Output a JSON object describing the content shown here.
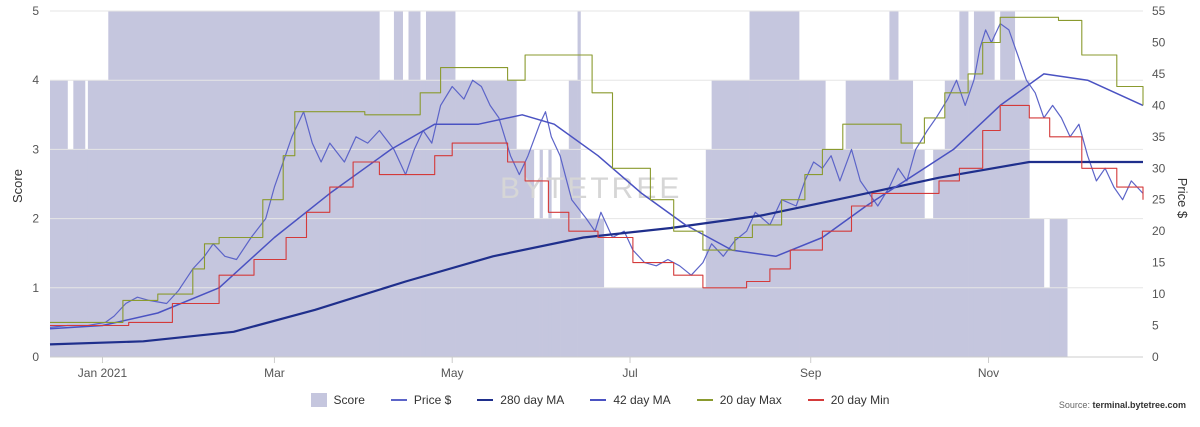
{
  "chart_data": {
    "type": "line",
    "y_left_label": "Score",
    "y_right_label": "Price $",
    "y_left_range": [
      0,
      5
    ],
    "y_left_ticks": [
      "0",
      "1",
      "2",
      "3",
      "4",
      "5"
    ],
    "y_right_range": [
      0,
      55
    ],
    "y_right_ticks": [
      "0",
      "5",
      "10",
      "15",
      "20",
      "25",
      "30",
      "35",
      "40",
      "45",
      "50",
      "55"
    ],
    "x_range": [
      "2020-12-14",
      "2021-12-24"
    ],
    "x_ticks": [
      {
        "date": "2021-01-01",
        "label": "Jan 2021"
      },
      {
        "date": "2021-03-01",
        "label": "Mar"
      },
      {
        "date": "2021-05-01",
        "label": "May"
      },
      {
        "date": "2021-07-01",
        "label": "Jul"
      },
      {
        "date": "2021-09-01",
        "label": "Sep"
      },
      {
        "date": "2021-11-01",
        "label": "Nov"
      }
    ],
    "grid": "horizontal",
    "legend_position": "bottom-center",
    "watermark": "BYTETREE",
    "source_prefix": "Source: ",
    "source_site": "terminal.bytetree.com",
    "score_steps": [
      [
        "2020-12-14",
        4
      ],
      [
        "2020-12-20",
        3
      ],
      [
        "2020-12-22",
        4
      ],
      [
        "2020-12-26",
        3
      ],
      [
        "2020-12-27",
        4
      ],
      [
        "2021-01-03",
        5
      ],
      [
        "2021-04-06",
        4
      ],
      [
        "2021-04-11",
        5
      ],
      [
        "2021-04-14",
        4
      ],
      [
        "2021-04-16",
        5
      ],
      [
        "2021-04-20",
        4
      ],
      [
        "2021-04-22",
        5
      ],
      [
        "2021-05-02",
        4
      ],
      [
        "2021-05-23",
        3
      ],
      [
        "2021-05-29",
        2
      ],
      [
        "2021-05-31",
        3
      ],
      [
        "2021-06-01",
        2
      ],
      [
        "2021-06-03",
        3
      ],
      [
        "2021-06-04",
        2
      ],
      [
        "2021-06-07",
        3
      ],
      [
        "2021-06-10",
        4
      ],
      [
        "2021-06-13",
        5
      ],
      [
        "2021-06-14",
        2
      ],
      [
        "2021-06-22",
        1
      ],
      [
        "2021-07-27",
        3
      ],
      [
        "2021-07-29",
        4
      ],
      [
        "2021-08-11",
        5
      ],
      [
        "2021-08-28",
        4
      ],
      [
        "2021-09-06",
        3
      ],
      [
        "2021-09-13",
        4
      ],
      [
        "2021-09-28",
        5
      ],
      [
        "2021-10-01",
        4
      ],
      [
        "2021-10-06",
        3
      ],
      [
        "2021-10-10",
        2
      ],
      [
        "2021-10-13",
        3
      ],
      [
        "2021-10-17",
        4
      ],
      [
        "2021-10-22",
        5
      ],
      [
        "2021-10-25",
        4
      ],
      [
        "2021-10-27",
        5
      ],
      [
        "2021-11-03",
        4
      ],
      [
        "2021-11-05",
        5
      ],
      [
        "2021-11-10",
        4
      ],
      [
        "2021-11-15",
        2
      ],
      [
        "2021-11-20",
        1
      ],
      [
        "2021-11-22",
        2
      ],
      [
        "2021-11-28",
        0
      ],
      [
        "2021-12-24",
        0
      ]
    ],
    "series": [
      {
        "name": "Price $",
        "color": "#5c64c8",
        "width": 1.2,
        "points": [
          [
            "2020-12-14",
            4.7
          ],
          [
            "2020-12-20",
            5.0
          ],
          [
            "2020-12-27",
            5.0
          ],
          [
            "2021-01-02",
            5.5
          ],
          [
            "2021-01-05",
            6.5
          ],
          [
            "2021-01-09",
            8.5
          ],
          [
            "2021-01-13",
            9.5
          ],
          [
            "2021-01-17",
            9.0
          ],
          [
            "2021-01-23",
            8.5
          ],
          [
            "2021-01-27",
            10.5
          ],
          [
            "2021-02-01",
            14.0
          ],
          [
            "2021-02-05",
            16.0
          ],
          [
            "2021-02-08",
            18.0
          ],
          [
            "2021-02-12",
            16.0
          ],
          [
            "2021-02-16",
            15.5
          ],
          [
            "2021-02-21",
            19.0
          ],
          [
            "2021-02-26",
            22.0
          ],
          [
            "2021-03-01",
            27.0
          ],
          [
            "2021-03-04",
            31.0
          ],
          [
            "2021-03-07",
            35.0
          ],
          [
            "2021-03-11",
            39.0
          ],
          [
            "2021-03-14",
            34.0
          ],
          [
            "2021-03-17",
            31.0
          ],
          [
            "2021-03-20",
            34.0
          ],
          [
            "2021-03-25",
            31.0
          ],
          [
            "2021-03-29",
            35.0
          ],
          [
            "2021-04-02",
            34.0
          ],
          [
            "2021-04-06",
            36.0
          ],
          [
            "2021-04-11",
            33.0
          ],
          [
            "2021-04-15",
            29.0
          ],
          [
            "2021-04-18",
            33.0
          ],
          [
            "2021-04-21",
            36.0
          ],
          [
            "2021-04-24",
            34.0
          ],
          [
            "2021-04-27",
            40.0
          ],
          [
            "2021-05-01",
            43.0
          ],
          [
            "2021-05-05",
            41.0
          ],
          [
            "2021-05-08",
            44.0
          ],
          [
            "2021-05-11",
            43.0
          ],
          [
            "2021-05-14",
            40.0
          ],
          [
            "2021-05-17",
            38.0
          ],
          [
            "2021-05-21",
            32.0
          ],
          [
            "2021-05-24",
            29.0
          ],
          [
            "2021-05-27",
            32.0
          ],
          [
            "2021-05-31",
            37.0
          ],
          [
            "2021-06-02",
            39.0
          ],
          [
            "2021-06-04",
            35.0
          ],
          [
            "2021-06-07",
            32.0
          ],
          [
            "2021-06-11",
            25.0
          ],
          [
            "2021-06-16",
            22.0
          ],
          [
            "2021-06-19",
            20.0
          ],
          [
            "2021-06-21",
            23.0
          ],
          [
            "2021-06-25",
            19.0
          ],
          [
            "2021-06-29",
            20.0
          ],
          [
            "2021-07-02",
            17.0
          ],
          [
            "2021-07-06",
            15.0
          ],
          [
            "2021-07-10",
            14.5
          ],
          [
            "2021-07-14",
            15.5
          ],
          [
            "2021-07-18",
            14.5
          ],
          [
            "2021-07-22",
            13.0
          ],
          [
            "2021-07-26",
            15.0
          ],
          [
            "2021-07-29",
            18.0
          ],
          [
            "2021-08-02",
            16.0
          ],
          [
            "2021-08-06",
            18.5
          ],
          [
            "2021-08-10",
            20.0
          ],
          [
            "2021-08-13",
            23.0
          ],
          [
            "2021-08-18",
            21.0
          ],
          [
            "2021-08-22",
            25.0
          ],
          [
            "2021-08-27",
            24.0
          ],
          [
            "2021-08-30",
            28.0
          ],
          [
            "2021-09-02",
            31.0
          ],
          [
            "2021-09-05",
            30.0
          ],
          [
            "2021-09-08",
            32.0
          ],
          [
            "2021-09-11",
            28.0
          ],
          [
            "2021-09-15",
            33.0
          ],
          [
            "2021-09-18",
            28.0
          ],
          [
            "2021-09-21",
            26.0
          ],
          [
            "2021-09-24",
            24.0
          ],
          [
            "2021-09-28",
            27.0
          ],
          [
            "2021-10-01",
            30.0
          ],
          [
            "2021-10-04",
            28.0
          ],
          [
            "2021-10-07",
            33.0
          ],
          [
            "2021-10-11",
            36.0
          ],
          [
            "2021-10-14",
            38.0
          ],
          [
            "2021-10-18",
            41.0
          ],
          [
            "2021-10-21",
            44.0
          ],
          [
            "2021-10-24",
            40.0
          ],
          [
            "2021-10-27",
            44.0
          ],
          [
            "2021-10-29",
            49.0
          ],
          [
            "2021-10-31",
            52.0
          ],
          [
            "2021-11-02",
            50.0
          ],
          [
            "2021-11-05",
            53.0
          ],
          [
            "2021-11-08",
            52.0
          ],
          [
            "2021-11-11",
            48.0
          ],
          [
            "2021-11-14",
            44.0
          ],
          [
            "2021-11-17",
            42.0
          ],
          [
            "2021-11-20",
            38.0
          ],
          [
            "2021-11-23",
            40.0
          ],
          [
            "2021-11-26",
            38.0
          ],
          [
            "2021-11-29",
            35.0
          ],
          [
            "2021-12-02",
            37.0
          ],
          [
            "2021-12-05",
            32.0
          ],
          [
            "2021-12-08",
            28.0
          ],
          [
            "2021-12-11",
            30.0
          ],
          [
            "2021-12-14",
            27.0
          ],
          [
            "2021-12-17",
            25.0
          ],
          [
            "2021-12-20",
            28.0
          ],
          [
            "2021-12-24",
            26.0
          ]
        ]
      },
      {
        "name": "280 day MA",
        "color": "#1f2f8c",
        "width": 2.2,
        "points": [
          [
            "2020-12-14",
            2.0
          ],
          [
            "2021-01-15",
            2.5
          ],
          [
            "2021-02-15",
            4.0
          ],
          [
            "2021-03-15",
            7.5
          ],
          [
            "2021-04-15",
            12.0
          ],
          [
            "2021-05-15",
            16.0
          ],
          [
            "2021-06-15",
            19.0
          ],
          [
            "2021-07-15",
            20.5
          ],
          [
            "2021-08-15",
            22.5
          ],
          [
            "2021-09-15",
            25.5
          ],
          [
            "2021-10-15",
            28.5
          ],
          [
            "2021-11-15",
            31.0
          ],
          [
            "2021-12-24",
            31.0
          ]
        ]
      },
      {
        "name": "42 day MA",
        "color": "#4a52c2",
        "width": 1.5,
        "points": [
          [
            "2020-12-14",
            4.5
          ],
          [
            "2021-01-01",
            5.0
          ],
          [
            "2021-01-20",
            7.0
          ],
          [
            "2021-02-10",
            11.0
          ],
          [
            "2021-03-01",
            19.0
          ],
          [
            "2021-03-20",
            26.0
          ],
          [
            "2021-04-10",
            33.0
          ],
          [
            "2021-04-25",
            37.0
          ],
          [
            "2021-05-10",
            37.0
          ],
          [
            "2021-05-25",
            38.5
          ],
          [
            "2021-06-05",
            37.0
          ],
          [
            "2021-06-20",
            32.0
          ],
          [
            "2021-07-05",
            26.0
          ],
          [
            "2021-07-20",
            21.0
          ],
          [
            "2021-08-05",
            17.0
          ],
          [
            "2021-08-20",
            16.0
          ],
          [
            "2021-09-05",
            19.0
          ],
          [
            "2021-09-20",
            24.0
          ],
          [
            "2021-10-05",
            28.5
          ],
          [
            "2021-10-20",
            33.0
          ],
          [
            "2021-11-05",
            40.0
          ],
          [
            "2021-11-20",
            45.0
          ],
          [
            "2021-12-05",
            44.0
          ],
          [
            "2021-12-24",
            40.0
          ]
        ]
      },
      {
        "name": "20 day Max",
        "color": "#8a9a2e",
        "width": 1.1,
        "step": true,
        "points": [
          [
            "2020-12-14",
            5.5
          ],
          [
            "2021-01-08",
            9.0
          ],
          [
            "2021-01-20",
            10.0
          ],
          [
            "2021-02-01",
            14.0
          ],
          [
            "2021-02-05",
            18.0
          ],
          [
            "2021-02-10",
            19.0
          ],
          [
            "2021-02-25",
            25.0
          ],
          [
            "2021-03-04",
            32.0
          ],
          [
            "2021-03-08",
            39.0
          ],
          [
            "2021-04-01",
            38.5
          ],
          [
            "2021-04-20",
            42.0
          ],
          [
            "2021-04-27",
            46.0
          ],
          [
            "2021-05-20",
            44.0
          ],
          [
            "2021-05-26",
            48.0
          ],
          [
            "2021-06-18",
            42.0
          ],
          [
            "2021-06-25",
            30.0
          ],
          [
            "2021-07-08",
            25.0
          ],
          [
            "2021-07-16",
            20.0
          ],
          [
            "2021-07-26",
            17.0
          ],
          [
            "2021-08-06",
            19.0
          ],
          [
            "2021-08-12",
            21.0
          ],
          [
            "2021-08-22",
            25.0
          ],
          [
            "2021-08-30",
            29.0
          ],
          [
            "2021-09-05",
            33.0
          ],
          [
            "2021-09-12",
            37.0
          ],
          [
            "2021-10-02",
            34.0
          ],
          [
            "2021-10-10",
            38.0
          ],
          [
            "2021-10-17",
            42.0
          ],
          [
            "2021-10-25",
            45.0
          ],
          [
            "2021-10-30",
            50.0
          ],
          [
            "2021-11-05",
            54.0
          ],
          [
            "2021-11-25",
            53.5
          ],
          [
            "2021-12-03",
            48.0
          ],
          [
            "2021-12-15",
            43.0
          ],
          [
            "2021-12-24",
            40.0
          ]
        ]
      },
      {
        "name": "20 day Min",
        "color": "#d43a3a",
        "width": 1.1,
        "step": true,
        "points": [
          [
            "2020-12-14",
            5.0
          ],
          [
            "2021-01-10",
            5.5
          ],
          [
            "2021-01-25",
            8.5
          ],
          [
            "2021-02-10",
            13.0
          ],
          [
            "2021-02-22",
            15.5
          ],
          [
            "2021-03-05",
            19.0
          ],
          [
            "2021-03-12",
            23.0
          ],
          [
            "2021-03-20",
            27.0
          ],
          [
            "2021-03-28",
            31.0
          ],
          [
            "2021-04-06",
            29.0
          ],
          [
            "2021-04-25",
            32.0
          ],
          [
            "2021-05-01",
            34.0
          ],
          [
            "2021-05-20",
            31.0
          ],
          [
            "2021-05-26",
            28.0
          ],
          [
            "2021-06-03",
            23.0
          ],
          [
            "2021-06-10",
            20.0
          ],
          [
            "2021-06-20",
            19.0
          ],
          [
            "2021-07-02",
            15.0
          ],
          [
            "2021-07-16",
            13.0
          ],
          [
            "2021-07-26",
            11.0
          ],
          [
            "2021-08-10",
            12.0
          ],
          [
            "2021-08-18",
            14.0
          ],
          [
            "2021-08-25",
            17.0
          ],
          [
            "2021-09-05",
            20.0
          ],
          [
            "2021-09-15",
            24.0
          ],
          [
            "2021-09-22",
            26.0
          ],
          [
            "2021-10-05",
            26.0
          ],
          [
            "2021-10-15",
            28.0
          ],
          [
            "2021-10-22",
            30.0
          ],
          [
            "2021-10-30",
            36.0
          ],
          [
            "2021-11-05",
            40.0
          ],
          [
            "2021-11-15",
            38.0
          ],
          [
            "2021-11-22",
            35.0
          ],
          [
            "2021-12-03",
            30.0
          ],
          [
            "2021-12-15",
            27.0
          ],
          [
            "2021-12-24",
            25.0
          ]
        ]
      }
    ]
  },
  "legend": [
    {
      "label": "Score",
      "color": "#c5c6de",
      "kind": "box"
    },
    {
      "label": "Price $",
      "color": "#5c64c8",
      "kind": "line"
    },
    {
      "label": "280 day MA",
      "color": "#1f2f8c",
      "kind": "line"
    },
    {
      "label": "42 day MA",
      "color": "#4a52c2",
      "kind": "line"
    },
    {
      "label": "20 day Max",
      "color": "#8a9a2e",
      "kind": "line"
    },
    {
      "label": "20 day Min",
      "color": "#d43a3a",
      "kind": "line"
    }
  ],
  "colors": {
    "score_fill": "#c5c6de",
    "grid": "#e6e6e6",
    "axis": "#cccccc"
  }
}
